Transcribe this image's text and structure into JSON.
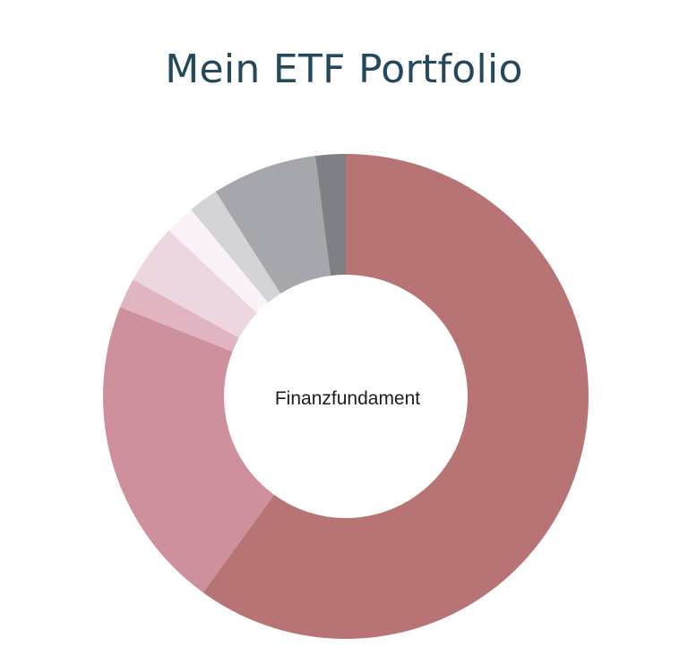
{
  "chart_data": {
    "type": "pie",
    "title": "Mein ETF Portfolio",
    "center_label": "Finanzfundament",
    "slices": [
      {
        "value": 60.0,
        "color": "#b87474"
      },
      {
        "value": 21.0,
        "color": "#cd909c"
      },
      {
        "value": 2.0,
        "color": "#e0b4c1"
      },
      {
        "value": 4.0,
        "color": "#ecd6e0"
      },
      {
        "value": 2.0,
        "color": "#fbf2f7"
      },
      {
        "value": 2.0,
        "color": "#d3d3d8"
      },
      {
        "value": 7.0,
        "color": "#a6a6ad"
      },
      {
        "value": 2.0,
        "color": "#7d8084"
      }
    ]
  }
}
